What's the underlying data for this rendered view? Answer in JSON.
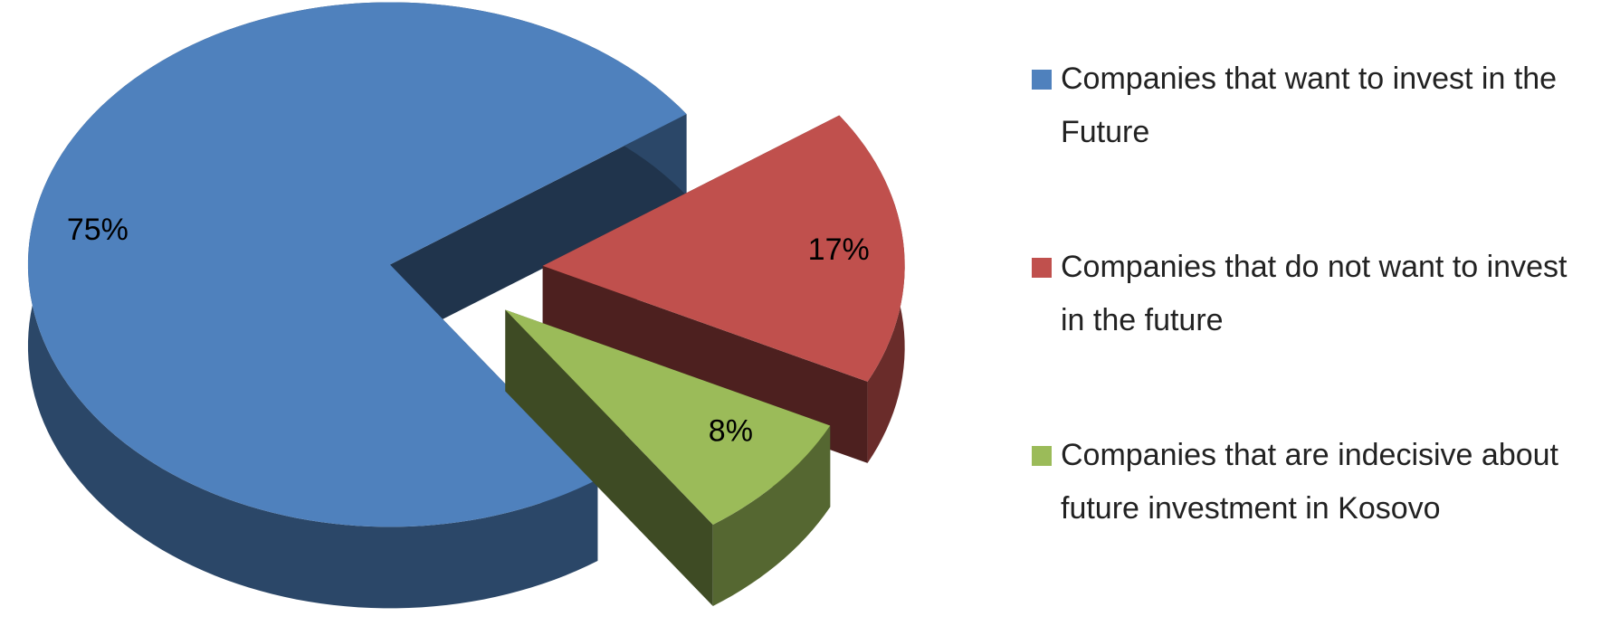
{
  "chart_data": {
    "type": "pie",
    "categories": [
      "Companies that want to invest in the Future",
      "Companies that do not want to invest in the future",
      "Companies that are indecisive about future investment in Kosovo"
    ],
    "values": [
      75,
      17,
      8
    ],
    "value_labels": [
      "75%",
      "17%",
      "8%"
    ],
    "colors": [
      "#4f81bd",
      "#c0504d",
      "#9bbb59"
    ],
    "legend": "right"
  }
}
